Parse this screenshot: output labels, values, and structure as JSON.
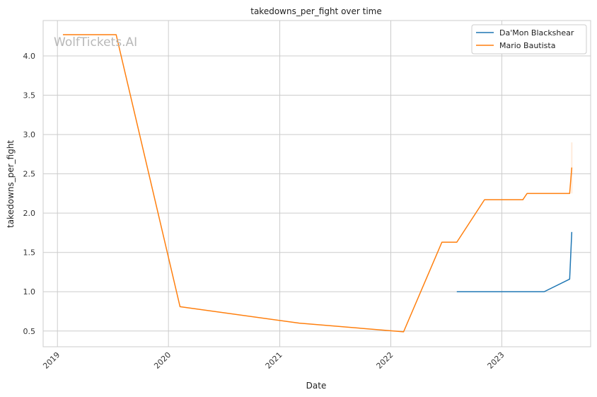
{
  "chart_data": {
    "type": "line",
    "title": "takedowns_per_fight over time",
    "xlabel": "Date",
    "ylabel": "takedowns_per_fight",
    "watermark": "WolfTickets.AI",
    "xlim": [
      "2018-11-15",
      "2023-10-20"
    ],
    "ylim": [
      0.3,
      4.45
    ],
    "x_ticks": [
      {
        "date": "2019-01-01",
        "label": "2019"
      },
      {
        "date": "2020-01-01",
        "label": "2020"
      },
      {
        "date": "2021-01-01",
        "label": "2021"
      },
      {
        "date": "2022-01-01",
        "label": "2022"
      },
      {
        "date": "2023-01-01",
        "label": "2023"
      }
    ],
    "y_ticks": [
      {
        "value": 0.5,
        "label": "0.5"
      },
      {
        "value": 1.0,
        "label": "1.0"
      },
      {
        "value": 1.5,
        "label": "1.5"
      },
      {
        "value": 2.0,
        "label": "2.0"
      },
      {
        "value": 2.5,
        "label": "2.5"
      },
      {
        "value": 3.0,
        "label": "3.0"
      },
      {
        "value": 3.5,
        "label": "3.5"
      },
      {
        "value": 4.0,
        "label": "4.0"
      }
    ],
    "grid": true,
    "legend_position": "top-right",
    "series": [
      {
        "name": "Da'Mon Blackshear",
        "color": "#1f77b4",
        "points": [
          {
            "x": "2022-08-06",
            "y": 1.0
          },
          {
            "x": "2023-05-20",
            "y": 1.0
          },
          {
            "x": "2023-08-12",
            "y": 1.16
          },
          {
            "x": "2023-08-19",
            "y": 1.76
          }
        ]
      },
      {
        "name": "Mario Bautista",
        "color": "#ff7f0e",
        "points": [
          {
            "x": "2019-01-19",
            "y": 4.27
          },
          {
            "x": "2019-07-13",
            "y": 4.27
          },
          {
            "x": "2020-02-08",
            "y": 0.81
          },
          {
            "x": "2021-03-06",
            "y": 0.6
          },
          {
            "x": "2022-02-12",
            "y": 0.49
          },
          {
            "x": "2022-06-18",
            "y": 1.63
          },
          {
            "x": "2022-08-06",
            "y": 1.63
          },
          {
            "x": "2022-11-05",
            "y": 2.17
          },
          {
            "x": "2023-03-11",
            "y": 2.17
          },
          {
            "x": "2023-03-25",
            "y": 2.25
          },
          {
            "x": "2023-08-12",
            "y": 2.25
          },
          {
            "x": "2023-08-19",
            "y": 2.58
          }
        ],
        "band": {
          "x": "2023-08-19",
          "low": 2.25,
          "high": 2.9
        }
      }
    ]
  }
}
